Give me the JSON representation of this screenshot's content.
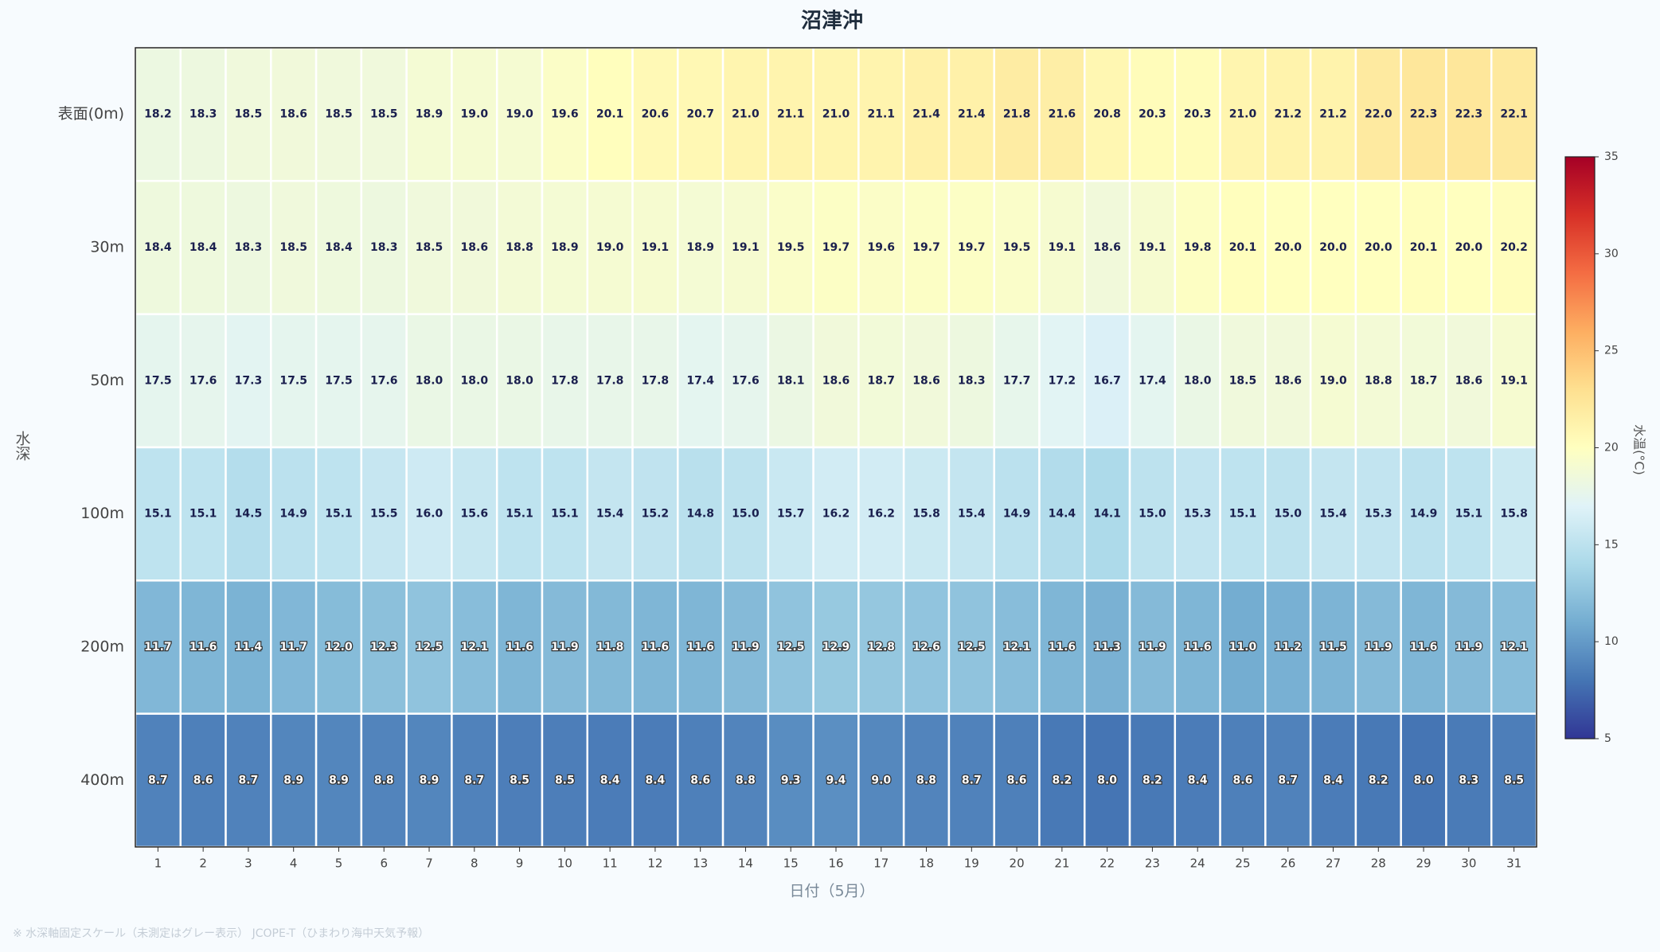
{
  "chart_data": {
    "type": "heatmap",
    "title": "沼津沖",
    "x_label": "日付（5月）",
    "y_label": "水深",
    "colorbar_label": "水温(°C)",
    "footnote": "※ 水深軸固定スケール（未測定はグレー表示） JCOPE-T（ひまわり海中天気予報）",
    "rows": [
      "表面(0m)",
      "30m",
      "50m",
      "100m",
      "200m",
      "400m"
    ],
    "categories": [
      1,
      2,
      3,
      4,
      5,
      6,
      7,
      8,
      9,
      10,
      11,
      12,
      13,
      14,
      15,
      16,
      17,
      18,
      19,
      20,
      21,
      22,
      23,
      24,
      25,
      26,
      27,
      28,
      29,
      30,
      31
    ],
    "values": [
      [
        18.2,
        18.3,
        18.5,
        18.6,
        18.5,
        18.5,
        18.9,
        19.0,
        19.0,
        19.6,
        20.1,
        20.6,
        20.7,
        21.0,
        21.1,
        21.0,
        21.1,
        21.4,
        21.4,
        21.8,
        21.6,
        20.8,
        20.3,
        20.3,
        21.0,
        21.2,
        21.2,
        22.0,
        22.3,
        22.3,
        22.1
      ],
      [
        18.4,
        18.4,
        18.3,
        18.5,
        18.4,
        18.3,
        18.5,
        18.6,
        18.8,
        18.9,
        19.0,
        19.1,
        18.9,
        19.1,
        19.5,
        19.7,
        19.6,
        19.7,
        19.7,
        19.5,
        19.1,
        18.6,
        19.1,
        19.8,
        20.1,
        20.0,
        20.0,
        20.0,
        20.1,
        20.0,
        20.2
      ],
      [
        17.5,
        17.6,
        17.3,
        17.5,
        17.5,
        17.6,
        18.0,
        18.0,
        18.0,
        17.8,
        17.8,
        17.8,
        17.4,
        17.6,
        18.1,
        18.6,
        18.7,
        18.6,
        18.3,
        17.7,
        17.2,
        16.7,
        17.4,
        18.0,
        18.5,
        18.6,
        19.0,
        18.8,
        18.7,
        18.6,
        19.1
      ],
      [
        15.1,
        15.1,
        14.5,
        14.9,
        15.1,
        15.5,
        16.0,
        15.6,
        15.1,
        15.1,
        15.4,
        15.2,
        14.8,
        15.0,
        15.7,
        16.2,
        16.2,
        15.8,
        15.4,
        14.9,
        14.4,
        14.1,
        15.0,
        15.3,
        15.1,
        15.0,
        15.4,
        15.3,
        14.9,
        15.1,
        15.8
      ],
      [
        11.7,
        11.6,
        11.4,
        11.7,
        12.0,
        12.3,
        12.5,
        12.1,
        11.6,
        11.9,
        11.8,
        11.6,
        11.6,
        11.9,
        12.5,
        12.9,
        12.8,
        12.6,
        12.5,
        12.1,
        11.6,
        11.3,
        11.9,
        11.6,
        11.0,
        11.2,
        11.5,
        11.9,
        11.6,
        11.9,
        12.1
      ],
      [
        8.7,
        8.6,
        8.7,
        8.9,
        8.9,
        8.8,
        8.9,
        8.7,
        8.5,
        8.5,
        8.4,
        8.4,
        8.6,
        8.8,
        9.3,
        9.4,
        9.0,
        8.8,
        8.7,
        8.6,
        8.2,
        8.0,
        8.2,
        8.4,
        8.6,
        8.7,
        8.4,
        8.2,
        8.0,
        8.3,
        8.5
      ]
    ],
    "value_labels": [
      [
        "18.2",
        "18.3",
        "18.5",
        "18.6",
        "18.5",
        "18.5",
        "18.9",
        "19.0",
        "19.0",
        "19.6",
        "20.1",
        "20.6",
        "20.7",
        "21.0",
        "21.1",
        "21.0",
        "21.1",
        "21.4",
        "21.4",
        "21.8",
        "21.6",
        "20.8",
        "20.3",
        "20.3",
        "21.0",
        "21.2",
        "21.2",
        "22.0",
        "22.3",
        "22.3",
        "22.1"
      ],
      [
        "18.4",
        "18.4",
        "18.3",
        "18.5",
        "18.4",
        "18.3",
        "18.5",
        "18.6",
        "18.8",
        "18.9",
        "19.0",
        "19.1",
        "18.9",
        "19.1",
        "19.5",
        "19.7",
        "19.6",
        "19.7",
        "19.7",
        "19.5",
        "19.1",
        "18.6",
        "19.1",
        "19.8",
        "20.1",
        "20.0",
        "20.0",
        "20.0",
        "20.1",
        "20.0",
        "20.2"
      ],
      [
        "17.5",
        "17.6",
        "17.3",
        "17.5",
        "17.5",
        "17.6",
        "18.0",
        "18.0",
        "18.0",
        "17.8",
        "17.8",
        "17.8",
        "17.4",
        "17.6",
        "18.1",
        "18.6",
        "18.7",
        "18.6",
        "18.3",
        "17.7",
        "17.2",
        "16.7",
        "17.4",
        "18.0",
        "18.5",
        "18.6",
        "19.0",
        "18.8",
        "18.7",
        "18.6",
        "19.1"
      ],
      [
        "15.1",
        "15.1",
        "14.5",
        "14.9",
        "15.1",
        "15.5",
        "16.0",
        "15.6",
        "15.1",
        "15.1",
        "15.4",
        "15.2",
        "14.8",
        "15.0",
        "15.7",
        "16.2",
        "16.2",
        "15.8",
        "15.4",
        "14.9",
        "14.4",
        "14.1",
        "15.0",
        "15.3",
        "15.1",
        "15.0",
        "15.4",
        "15.3",
        "14.9",
        "15.1",
        "15.8"
      ],
      [
        "11.7",
        "11.6",
        "11.4",
        "11.7",
        "12.0",
        "12.3",
        "12.5",
        "12.1",
        "11.6",
        "11.9",
        "11.8",
        "11.6",
        "11.6",
        "11.9",
        "12.5",
        "12.9",
        "12.8",
        "12.6",
        "12.5",
        "12.1",
        "11.6",
        "11.3",
        "11.9",
        "11.6",
        "11.0",
        "11.2",
        "11.5",
        "11.9",
        "11.6",
        "11.9",
        "12.1"
      ],
      [
        "8.7",
        "8.6",
        "8.7",
        "8.9",
        "8.9",
        "8.8",
        "8.9",
        "8.7",
        "8.5",
        "8.5",
        "8.4",
        "8.4",
        "8.6",
        "8.8",
        "9.3",
        "9.4",
        "9.0",
        "8.8",
        "8.7",
        "8.6",
        "8.2",
        "8.0",
        "8.2",
        "8.4",
        "8.6",
        "8.7",
        "8.4",
        "8.2",
        "8.0",
        "8.3",
        "8.5"
      ]
    ],
    "clim": [
      5,
      35
    ],
    "colorbar_ticks": [
      5,
      10,
      15,
      20,
      25,
      30,
      35
    ],
    "colors": [
      "#313695",
      "#4575b4",
      "#74add1",
      "#abd9e9",
      "#e0f3f8",
      "#ffffbf",
      "#fee090",
      "#fdae61",
      "#f46d43",
      "#d73027",
      "#a50026"
    ]
  }
}
